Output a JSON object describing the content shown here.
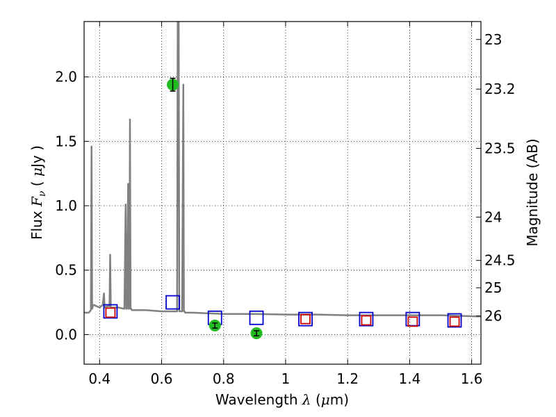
{
  "chart_data": {
    "type": "scatter",
    "xlabel": "Wavelength",
    "xlabel_symbol": "λ",
    "xlabel_unit_prefix": "(",
    "xlabel_unit_mu": "μ",
    "xlabel_unit_suffix": "m)",
    "ylabel": "Flux",
    "ylabel_symbol": "F",
    "ylabel_subscript": "ν",
    "ylabel_unit_prefix": "( ",
    "ylabel_unit_mu": "μ",
    "ylabel_unit_suffix": "Jy )",
    "y2label": "Magnitude (AB)",
    "xlim": [
      0.35,
      1.63
    ],
    "ylim": [
      -0.23,
      2.43
    ],
    "grid": true,
    "x_ticks": [
      0.4,
      0.6,
      0.8,
      1.0,
      1.2,
      1.4,
      1.6
    ],
    "x_tick_labels": [
      "0.4",
      "0.6",
      "0.8",
      "1",
      "1.2",
      "1.4",
      "1.6"
    ],
    "y_ticks": [
      0.0,
      0.5,
      1.0,
      1.5,
      2.0
    ],
    "y_tick_labels": [
      "0.0",
      "0.5",
      "1.0",
      "1.5",
      "2.0"
    ],
    "y2_ticks": [
      23,
      23.2,
      23.5,
      24,
      24.5,
      25,
      26
    ],
    "y2_tick_labels": [
      "23",
      "23.2",
      "23.5",
      "24",
      "24.5",
      "25",
      "26"
    ],
    "colors": {
      "template": "#808080",
      "model_box": "#0000cc",
      "obs_box": "#cc0000",
      "detection": "#22bb22",
      "errorbar": "#000000"
    },
    "series": [
      {
        "type": "line",
        "x": [
          0.35,
          0.365,
          0.372,
          0.374,
          0.376,
          0.378,
          0.382,
          0.39,
          0.4,
          0.41,
          0.414,
          0.416,
          0.418,
          0.425,
          0.432,
          0.434,
          0.436,
          0.44,
          0.46,
          0.48,
          0.484,
          0.486,
          0.488,
          0.492,
          0.494,
          0.496,
          0.498,
          0.5,
          0.502,
          0.504,
          0.51,
          0.55,
          0.6,
          0.64,
          0.65,
          0.652,
          0.655,
          0.657,
          0.66,
          0.663,
          0.666,
          0.67,
          0.672,
          0.674,
          0.676,
          0.68,
          0.7,
          0.8,
          0.9,
          1.0,
          1.1,
          1.2,
          1.3,
          1.4,
          1.5,
          1.63
        ],
        "y": [
          0.17,
          0.17,
          0.19,
          1.46,
          0.2,
          0.22,
          0.23,
          0.22,
          0.21,
          0.23,
          0.32,
          0.22,
          0.21,
          0.22,
          0.22,
          0.62,
          0.21,
          0.21,
          0.21,
          0.2,
          1.01,
          0.2,
          0.2,
          1.17,
          0.2,
          0.2,
          1.67,
          0.2,
          0.2,
          0.19,
          0.19,
          0.19,
          0.18,
          0.18,
          0.18,
          2.43,
          2.43,
          0.18,
          0.18,
          0.18,
          0.18,
          1.94,
          0.18,
          0.18,
          0.17,
          0.17,
          0.17,
          0.16,
          0.16,
          0.155,
          0.155,
          0.15,
          0.15,
          0.15,
          0.15,
          0.14
        ]
      },
      {
        "type": "scatter",
        "marker": "square",
        "x": [
          0.435,
          0.636,
          0.772,
          0.906,
          1.064,
          1.26,
          1.41,
          1.545
        ],
        "y": [
          0.18,
          0.25,
          0.13,
          0.13,
          0.12,
          0.12,
          0.12,
          0.11
        ]
      },
      {
        "type": "scatter",
        "marker": "square",
        "x": [
          0.435,
          1.064,
          1.26,
          1.41,
          1.545
        ],
        "y": [
          0.17,
          0.12,
          0.11,
          0.1,
          0.1
        ]
      },
      {
        "type": "scatter",
        "marker": "circle",
        "x": [
          0.636,
          0.772,
          0.906
        ],
        "y": [
          1.94,
          0.07,
          0.01
        ],
        "yerr": [
          0.05,
          0.02,
          0.02
        ]
      }
    ]
  }
}
